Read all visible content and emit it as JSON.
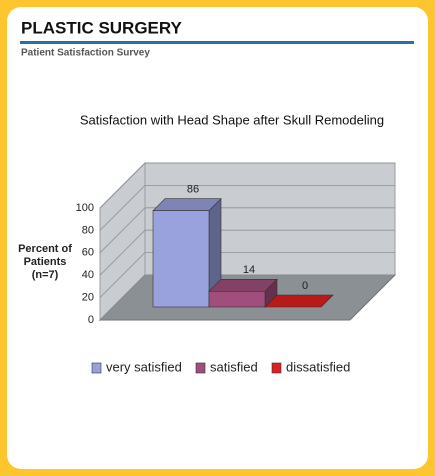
{
  "header": {
    "title": "PLASTIC SURGERY",
    "subtitle": "Patient Satisfaction Survey"
  },
  "chart_data": {
    "type": "bar3d",
    "title": "Satisfaction with Head Shape after Skull Remodeling",
    "ylabel": "Percent of Patients (n=7)",
    "categories": [
      "very satisfied",
      "satisfied",
      "dissatisfied"
    ],
    "values": [
      86,
      14,
      0
    ],
    "colors": [
      "#9aa2de",
      "#a04f7c",
      "#e0201e"
    ],
    "ylim": [
      0,
      100
    ],
    "yticks": [
      0,
      20,
      40,
      60,
      80,
      100
    ],
    "grid": true,
    "legend": "bottom"
  }
}
